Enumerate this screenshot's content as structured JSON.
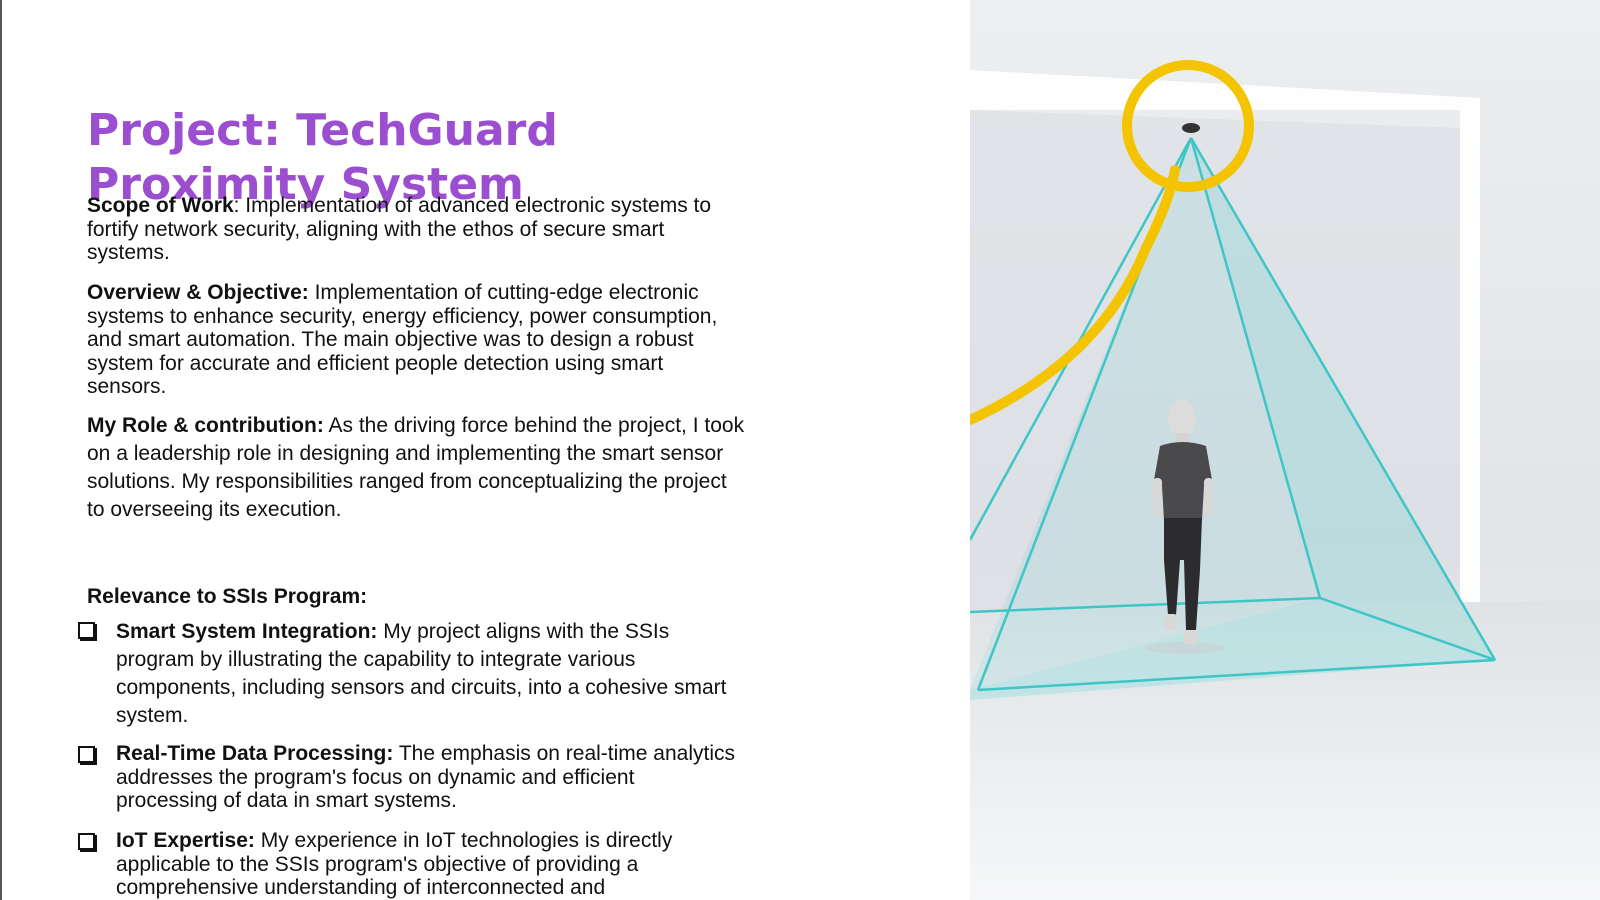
{
  "slide": {
    "title": "Project: TechGuard Proximity System",
    "scope": {
      "label": "Scope of Work",
      "text": ": Implementation of advanced electronic systems to  fortify network security, aligning with the ethos of secure smart  systems."
    },
    "overview": {
      "label": "Overview & Objective:",
      "text": " Implementation of cutting-edge electronic  systems to enhance security, energy efficiency, power consumption,  and smart automation. The main objective was to design a robust  system for accurate and efficient people detection using smart  sensors."
    },
    "role": {
      "label": "My Role & contribution:",
      "text": " As the driving force behind the project, I took on a leadership role in designing and implementing the smart  sensor solutions. My responsibilities ranged from conceptualizing the  project to overseeing its execution."
    },
    "relevance_heading": "Relevance to SSIs Program:",
    "bullets": [
      {
        "label": "Smart System Integration:",
        "text": " My project aligns with the SSIs program  by illustrating the capability to integrate various components,  including sensors and circuits, into a cohesive smart system."
      },
      {
        "label": "Real-Time Data Processing:",
        "text": " The emphasis on real-time analytics  addresses the program's focus on dynamic and efficient processing  of data in smart systems."
      },
      {
        "label": "IoT Expertise:",
        "text": " My experience in IoT technologies is directly applicable to the SSIs program's objective of providing a comprehensive understanding of interconnected and"
      }
    ]
  },
  "colors": {
    "title": "#9b4fd0",
    "accent_ring": "#f5c400",
    "sensor_cone": "#3ec6c6"
  },
  "illustration": {
    "subject": "ceiling-sensor-detection-cone-with-person"
  }
}
